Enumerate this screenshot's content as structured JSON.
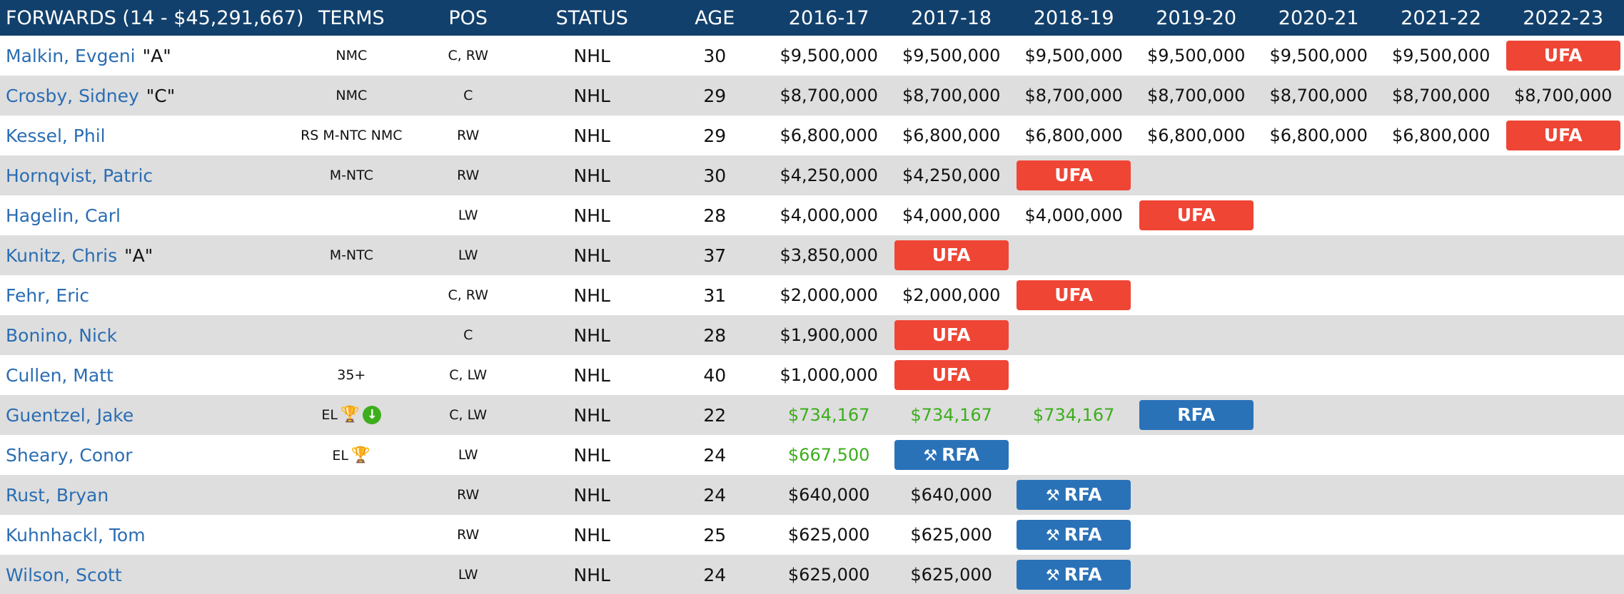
{
  "header": {
    "title": "FORWARDS (14 - $45,291,667)",
    "terms": "TERMS",
    "pos": "POS",
    "status": "STATUS",
    "age": "AGE",
    "seasons": [
      "2016-17",
      "2017-18",
      "2018-19",
      "2019-20",
      "2020-21",
      "2021-22",
      "2022-23"
    ]
  },
  "players": [
    {
      "name": "Malkin, Evgeni",
      "captaincy": "\"A\"",
      "terms": "NMC",
      "pos": "C, RW",
      "status": "NHL",
      "age": "30",
      "salary": [
        "$9,500,000",
        "$9,500,000",
        "$9,500,000",
        "$9,500,000",
        "$9,500,000",
        "$9,500,000",
        "UFA"
      ]
    },
    {
      "name": "Crosby, Sidney",
      "captaincy": "\"C\"",
      "terms": "NMC",
      "pos": "C",
      "status": "NHL",
      "age": "29",
      "salary": [
        "$8,700,000",
        "$8,700,000",
        "$8,700,000",
        "$8,700,000",
        "$8,700,000",
        "$8,700,000",
        "$8,700,000"
      ]
    },
    {
      "name": "Kessel, Phil",
      "captaincy": "",
      "terms": "RS M-NTC NMC",
      "pos": "RW",
      "status": "NHL",
      "age": "29",
      "salary": [
        "$6,800,000",
        "$6,800,000",
        "$6,800,000",
        "$6,800,000",
        "$6,800,000",
        "$6,800,000",
        "UFA"
      ]
    },
    {
      "name": "Hornqvist, Patric",
      "captaincy": "",
      "terms": "M-NTC",
      "pos": "RW",
      "status": "NHL",
      "age": "30",
      "salary": [
        "$4,250,000",
        "$4,250,000",
        "UFA",
        "",
        "",
        "",
        ""
      ]
    },
    {
      "name": "Hagelin, Carl",
      "captaincy": "",
      "terms": "",
      "pos": "LW",
      "status": "NHL",
      "age": "28",
      "salary": [
        "$4,000,000",
        "$4,000,000",
        "$4,000,000",
        "UFA",
        "",
        "",
        ""
      ]
    },
    {
      "name": "Kunitz, Chris",
      "captaincy": "\"A\"",
      "terms": "M-NTC",
      "pos": "LW",
      "status": "NHL",
      "age": "37",
      "salary": [
        "$3,850,000",
        "UFA",
        "",
        "",
        "",
        "",
        ""
      ]
    },
    {
      "name": "Fehr, Eric",
      "captaincy": "",
      "terms": "",
      "pos": "C, RW",
      "status": "NHL",
      "age": "31",
      "salary": [
        "$2,000,000",
        "$2,000,000",
        "UFA",
        "",
        "",
        "",
        ""
      ]
    },
    {
      "name": "Bonino, Nick",
      "captaincy": "",
      "terms": "",
      "pos": "C",
      "status": "NHL",
      "age": "28",
      "salary": [
        "$1,900,000",
        "UFA",
        "",
        "",
        "",
        "",
        ""
      ]
    },
    {
      "name": "Cullen, Matt",
      "captaincy": "",
      "terms": "35+",
      "pos": "C, LW",
      "status": "NHL",
      "age": "40",
      "salary": [
        "$1,000,000",
        "UFA",
        "",
        "",
        "",
        "",
        ""
      ]
    },
    {
      "name": "Guentzel, Jake",
      "captaincy": "",
      "terms": "EL",
      "trophy": true,
      "down": true,
      "pos": "C, LW",
      "status": "NHL",
      "age": "22",
      "salary": [
        "$734,167",
        "$734,167",
        "$734,167",
        "RFA",
        "",
        "",
        ""
      ],
      "entry": true
    },
    {
      "name": "Sheary, Conor",
      "captaincy": "",
      "terms": "EL",
      "trophy": true,
      "pos": "LW",
      "status": "NHL",
      "age": "24",
      "salary": [
        "$667,500",
        "RFA*",
        "",
        "",
        "",
        "",
        ""
      ],
      "entry": true
    },
    {
      "name": "Rust, Bryan",
      "captaincy": "",
      "terms": "",
      "pos": "RW",
      "status": "NHL",
      "age": "24",
      "salary": [
        "$640,000",
        "$640,000",
        "RFA*",
        "",
        "",
        "",
        ""
      ]
    },
    {
      "name": "Kuhnhackl, Tom",
      "captaincy": "",
      "terms": "",
      "pos": "RW",
      "status": "NHL",
      "age": "25",
      "salary": [
        "$625,000",
        "$625,000",
        "RFA*",
        "",
        "",
        "",
        ""
      ]
    },
    {
      "name": "Wilson, Scott",
      "captaincy": "",
      "terms": "",
      "pos": "LW",
      "status": "NHL",
      "age": "24",
      "salary": [
        "$625,000",
        "$625,000",
        "RFA*",
        "",
        "",
        "",
        ""
      ]
    }
  ],
  "badges": {
    "ufa": "UFA",
    "rfa": "RFA"
  },
  "colors": {
    "header_bg": "#12406c",
    "alt_row": "#dedede",
    "link": "#2a6db3",
    "ufa": "#ef4535",
    "rfa": "#2a72b8",
    "entry_green": "#3cae1c"
  }
}
